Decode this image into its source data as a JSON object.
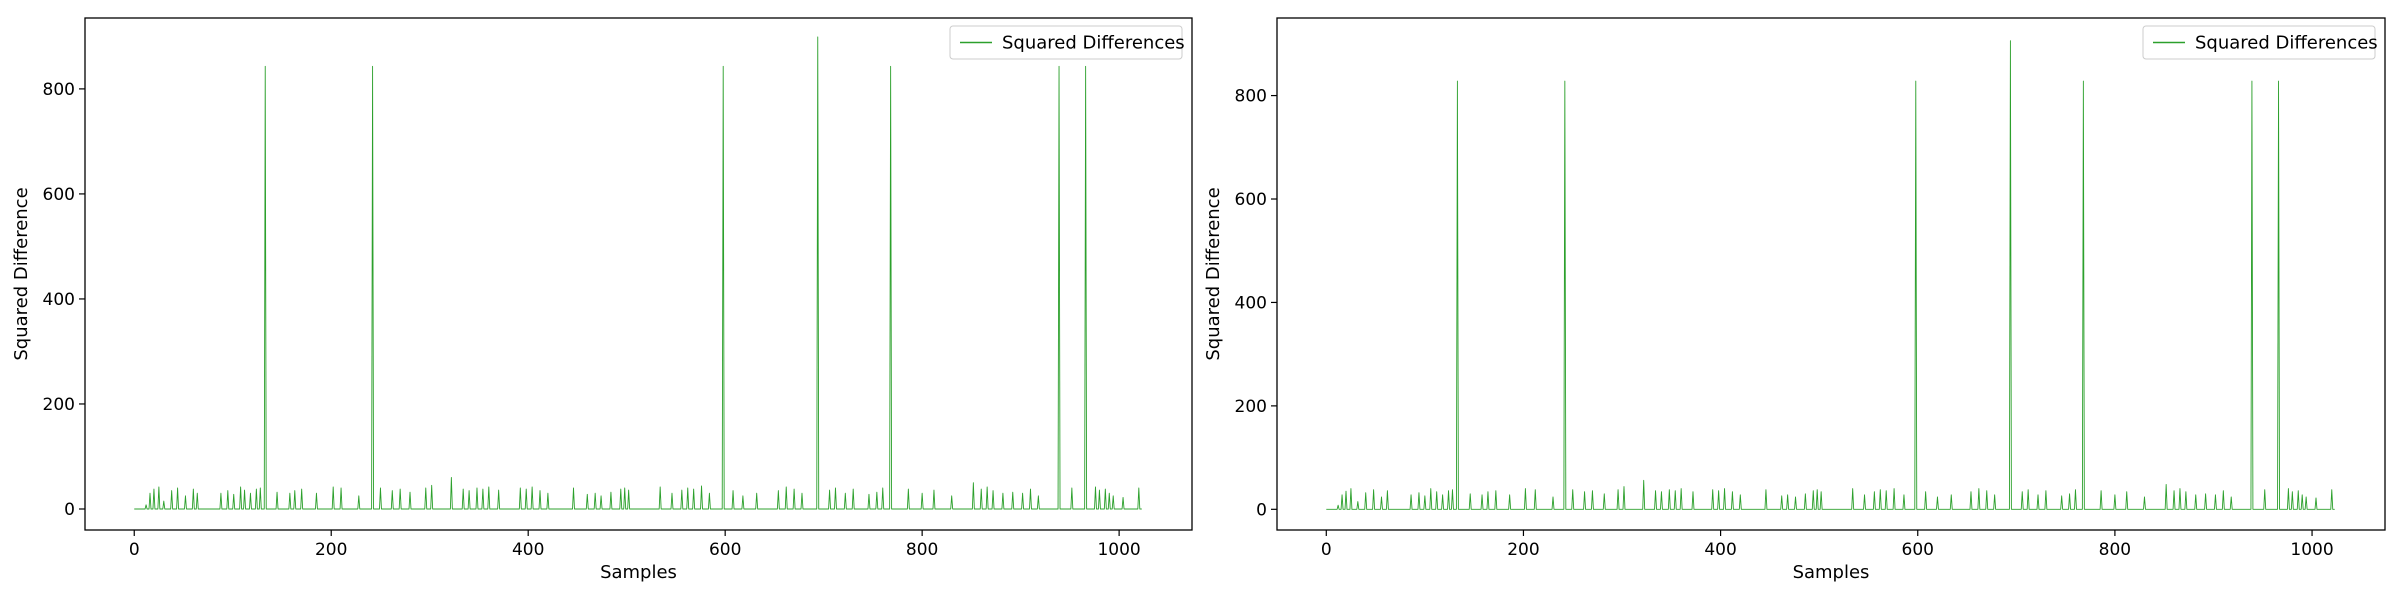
{
  "chart_data": [
    {
      "type": "line",
      "title": "",
      "xlabel": "Samples",
      "ylabel": "Squared Difference",
      "xlim": [
        -50,
        1074
      ],
      "ylim": [
        -40,
        935
      ],
      "xticks": [
        0,
        200,
        400,
        600,
        800,
        1000
      ],
      "yticks": [
        0,
        200,
        400,
        600,
        800
      ],
      "grid": false,
      "legend_position": "top-right",
      "series": [
        {
          "name": "Squared Differences",
          "color": "#2ca02c",
          "x_range": [
            0,
            1023
          ],
          "baseline": 0,
          "peaks": [
            [
              133,
              843
            ],
            [
              242,
              843
            ],
            [
              598,
              843
            ],
            [
              694,
              899
            ],
            [
              768,
              843
            ],
            [
              939,
              843
            ],
            [
              966,
              843
            ]
          ],
          "minor_spikes": [
            [
              12,
              8
            ],
            [
              16,
              30
            ],
            [
              20,
              38
            ],
            [
              25,
              42
            ],
            [
              30,
              15
            ],
            [
              38,
              35
            ],
            [
              44,
              40
            ],
            [
              52,
              25
            ],
            [
              60,
              38
            ],
            [
              64,
              30
            ],
            [
              88,
              30
            ],
            [
              95,
              35
            ],
            [
              101,
              28
            ],
            [
              108,
              42
            ],
            [
              112,
              36
            ],
            [
              118,
              30
            ],
            [
              124,
              38
            ],
            [
              128,
              40
            ],
            [
              145,
              32
            ],
            [
              158,
              30
            ],
            [
              163,
              35
            ],
            [
              170,
              38
            ],
            [
              185,
              30
            ],
            [
              202,
              42
            ],
            [
              210,
              40
            ],
            [
              228,
              25
            ],
            [
              250,
              40
            ],
            [
              262,
              35
            ],
            [
              270,
              38
            ],
            [
              280,
              32
            ],
            [
              296,
              40
            ],
            [
              302,
              45
            ],
            [
              322,
              60
            ],
            [
              334,
              38
            ],
            [
              340,
              35
            ],
            [
              348,
              40
            ],
            [
              354,
              38
            ],
            [
              360,
              42
            ],
            [
              370,
              36
            ],
            [
              392,
              40
            ],
            [
              398,
              38
            ],
            [
              404,
              42
            ],
            [
              412,
              35
            ],
            [
              420,
              30
            ],
            [
              446,
              40
            ],
            [
              460,
              28
            ],
            [
              468,
              30
            ],
            [
              474,
              25
            ],
            [
              484,
              32
            ],
            [
              494,
              38
            ],
            [
              498,
              40
            ],
            [
              502,
              36
            ],
            [
              534,
              42
            ],
            [
              546,
              30
            ],
            [
              556,
              36
            ],
            [
              562,
              40
            ],
            [
              568,
              38
            ],
            [
              576,
              44
            ],
            [
              584,
              30
            ],
            [
              608,
              35
            ],
            [
              618,
              25
            ],
            [
              632,
              30
            ],
            [
              654,
              35
            ],
            [
              662,
              42
            ],
            [
              670,
              38
            ],
            [
              678,
              30
            ],
            [
              706,
              36
            ],
            [
              712,
              40
            ],
            [
              722,
              30
            ],
            [
              730,
              38
            ],
            [
              746,
              28
            ],
            [
              754,
              32
            ],
            [
              760,
              40
            ],
            [
              786,
              38
            ],
            [
              800,
              30
            ],
            [
              812,
              36
            ],
            [
              830,
              25
            ],
            [
              852,
              50
            ],
            [
              860,
              38
            ],
            [
              866,
              42
            ],
            [
              872,
              35
            ],
            [
              882,
              30
            ],
            [
              892,
              32
            ],
            [
              902,
              30
            ],
            [
              910,
              38
            ],
            [
              918,
              25
            ],
            [
              952,
              40
            ],
            [
              976,
              42
            ],
            [
              980,
              36
            ],
            [
              986,
              38
            ],
            [
              990,
              30
            ],
            [
              994,
              25
            ],
            [
              1004,
              22
            ],
            [
              1020,
              40
            ]
          ]
        }
      ]
    },
    {
      "type": "line",
      "title": "",
      "xlabel": "Samples",
      "ylabel": "Squared Difference",
      "xlim": [
        -50,
        1074
      ],
      "ylim": [
        -40,
        950
      ],
      "xticks": [
        0,
        200,
        400,
        600,
        800,
        1000
      ],
      "yticks": [
        0,
        200,
        400,
        600,
        800
      ],
      "grid": false,
      "legend_position": "top-right",
      "series": [
        {
          "name": "Squared Differences",
          "color": "#2ca02c",
          "x_range": [
            0,
            1023
          ],
          "baseline": 0,
          "peaks": [
            [
              133,
              828
            ],
            [
              242,
              828
            ],
            [
              598,
              828
            ],
            [
              694,
              906
            ],
            [
              768,
              828
            ],
            [
              939,
              828
            ],
            [
              966,
              828
            ]
          ],
          "minor_spikes": [
            [
              12,
              8
            ],
            [
              16,
              28
            ],
            [
              20,
              35
            ],
            [
              25,
              40
            ],
            [
              32,
              15
            ],
            [
              40,
              32
            ],
            [
              48,
              38
            ],
            [
              56,
              24
            ],
            [
              62,
              36
            ],
            [
              86,
              28
            ],
            [
              94,
              32
            ],
            [
              100,
              26
            ],
            [
              106,
              40
            ],
            [
              112,
              34
            ],
            [
              118,
              28
            ],
            [
              124,
              36
            ],
            [
              128,
              38
            ],
            [
              146,
              30
            ],
            [
              158,
              28
            ],
            [
              164,
              34
            ],
            [
              172,
              36
            ],
            [
              186,
              28
            ],
            [
              202,
              40
            ],
            [
              212,
              38
            ],
            [
              230,
              24
            ],
            [
              250,
              38
            ],
            [
              262,
              34
            ],
            [
              270,
              36
            ],
            [
              282,
              30
            ],
            [
              296,
              38
            ],
            [
              302,
              44
            ],
            [
              322,
              56
            ],
            [
              334,
              36
            ],
            [
              340,
              34
            ],
            [
              348,
              38
            ],
            [
              354,
              36
            ],
            [
              360,
              40
            ],
            [
              372,
              34
            ],
            [
              392,
              38
            ],
            [
              398,
              36
            ],
            [
              404,
              40
            ],
            [
              412,
              34
            ],
            [
              420,
              28
            ],
            [
              446,
              38
            ],
            [
              462,
              26
            ],
            [
              468,
              28
            ],
            [
              476,
              24
            ],
            [
              486,
              30
            ],
            [
              494,
              36
            ],
            [
              498,
              38
            ],
            [
              502,
              34
            ],
            [
              534,
              40
            ],
            [
              546,
              28
            ],
            [
              556,
              34
            ],
            [
              562,
              38
            ],
            [
              568,
              36
            ],
            [
              576,
              40
            ],
            [
              586,
              28
            ],
            [
              608,
              34
            ],
            [
              620,
              24
            ],
            [
              634,
              28
            ],
            [
              654,
              34
            ],
            [
              662,
              40
            ],
            [
              670,
              36
            ],
            [
              678,
              28
            ],
            [
              706,
              34
            ],
            [
              712,
              38
            ],
            [
              722,
              28
            ],
            [
              730,
              36
            ],
            [
              746,
              26
            ],
            [
              754,
              30
            ],
            [
              760,
              38
            ],
            [
              786,
              36
            ],
            [
              800,
              28
            ],
            [
              812,
              34
            ],
            [
              830,
              24
            ],
            [
              852,
              48
            ],
            [
              860,
              36
            ],
            [
              866,
              40
            ],
            [
              872,
              34
            ],
            [
              882,
              28
            ],
            [
              892,
              30
            ],
            [
              902,
              28
            ],
            [
              910,
              36
            ],
            [
              918,
              24
            ],
            [
              952,
              38
            ],
            [
              976,
              40
            ],
            [
              980,
              34
            ],
            [
              986,
              36
            ],
            [
              990,
              28
            ],
            [
              994,
              24
            ],
            [
              1004,
              22
            ],
            [
              1020,
              38
            ]
          ]
        }
      ]
    }
  ]
}
